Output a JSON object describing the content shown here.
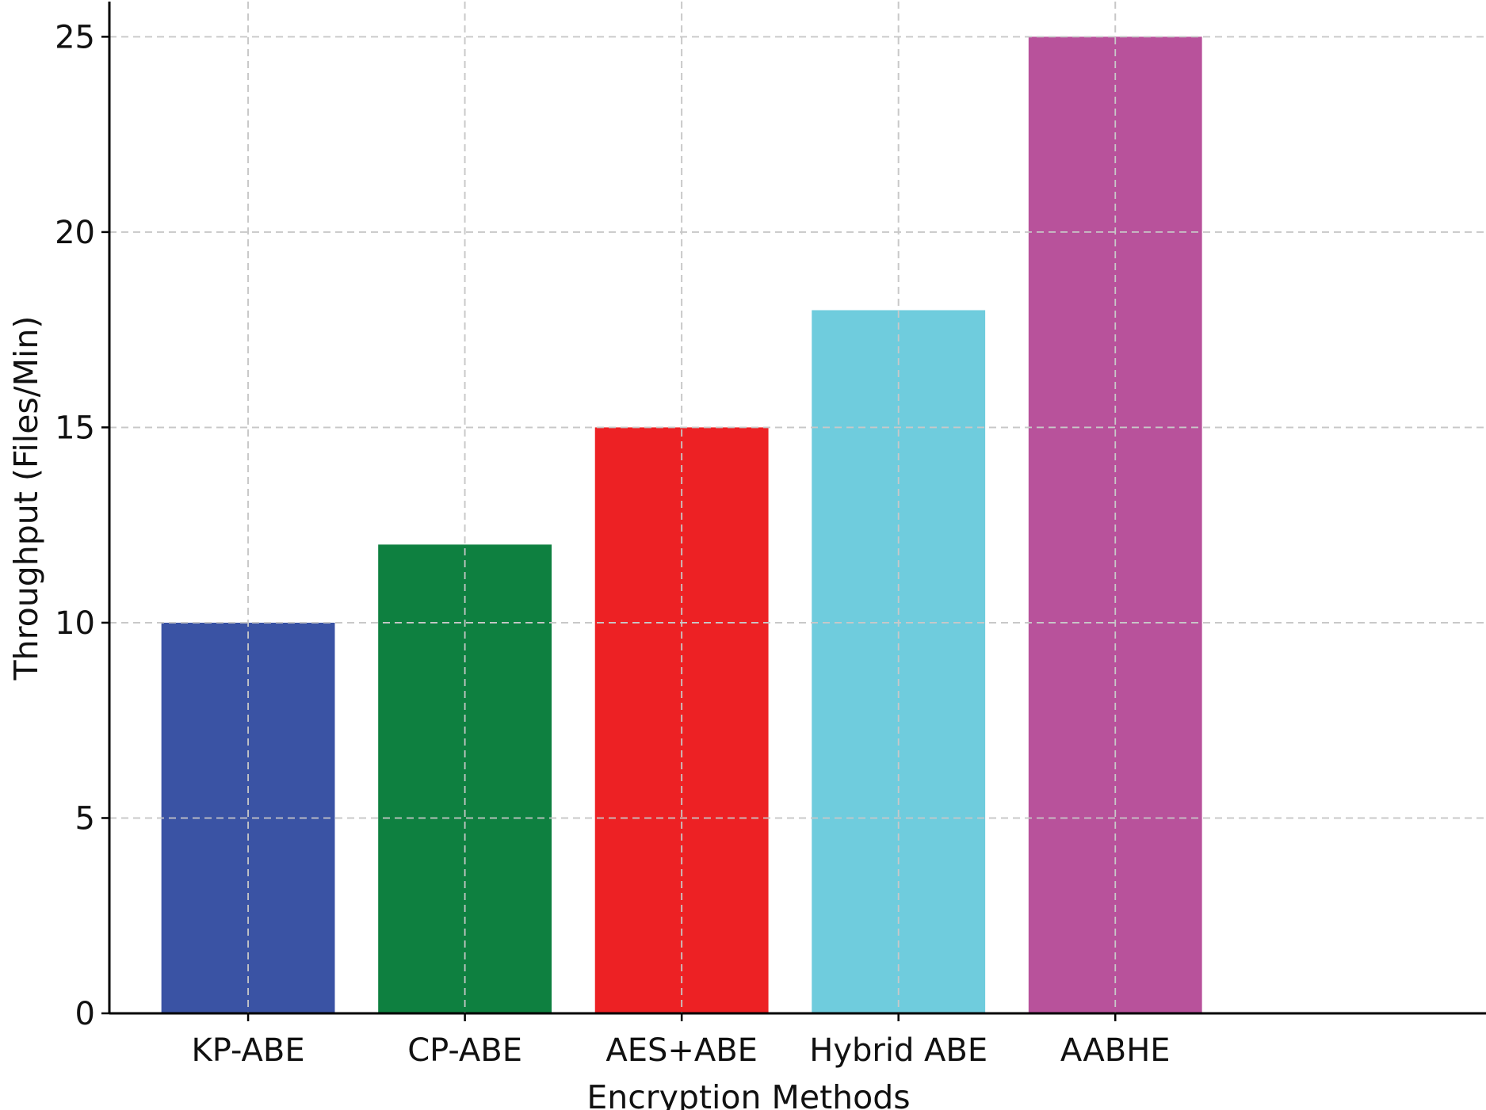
{
  "chart_data": {
    "type": "bar",
    "title": "",
    "xlabel": "Encryption Methods",
    "ylabel": "Throughput (Files/Min)",
    "categories": [
      "KP-ABE",
      "CP-ABE",
      "AES+ABE",
      "Hybrid ABE",
      "AABHE"
    ],
    "values": [
      10,
      12,
      15,
      18,
      25
    ],
    "colors": [
      "#3a53a4",
      "#0e8040",
      "#ed2124",
      "#6fccdd",
      "#b8529b"
    ],
    "ylim": [
      0,
      25.9
    ],
    "yticks": [
      0,
      5,
      10,
      15,
      20,
      25
    ],
    "grid": true,
    "legend": "none"
  }
}
